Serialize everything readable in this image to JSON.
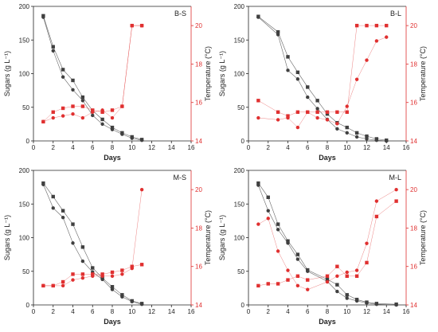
{
  "colors": {
    "sugar": "#404040",
    "temperature": "#e03030",
    "axis": "#222222"
  },
  "chart_data": [
    {
      "type": "line",
      "panel_label": "B-S",
      "xlabel": "Days",
      "ylabel_left": "Sugars (g L⁻¹)",
      "ylabel_right": "Temperature (°C)",
      "xlim": [
        0,
        16
      ],
      "xticks": [
        "0",
        "2",
        "4",
        "6",
        "8",
        "10",
        "12",
        "14",
        "16"
      ],
      "ylim_left": [
        0,
        200
      ],
      "yticks_left": [
        "0",
        "50",
        "100",
        "150",
        "200"
      ],
      "ylim_right": [
        14,
        21
      ],
      "yticks_right": [
        "14",
        "16",
        "18",
        "20"
      ],
      "grid": false,
      "series": [
        {
          "axis": "left",
          "marker": "square",
          "x": [
            1,
            2,
            3,
            4,
            5,
            6,
            7,
            8,
            9,
            10,
            11
          ],
          "y": [
            186,
            140,
            106,
            90,
            65,
            45,
            32,
            20,
            12,
            6,
            2
          ]
        },
        {
          "axis": "left",
          "marker": "circle",
          "x": [
            1,
            2,
            3,
            4,
            5,
            6,
            7,
            8,
            9,
            10,
            11
          ],
          "y": [
            184,
            134,
            95,
            76,
            60,
            38,
            25,
            17,
            10,
            4,
            1
          ]
        },
        {
          "axis": "right",
          "marker": "square",
          "x": [
            1,
            2,
            3,
            4,
            5,
            6,
            7,
            8,
            9,
            10,
            11
          ],
          "y": [
            15,
            15.5,
            15.7,
            15.8,
            15.8,
            15.6,
            15.5,
            15.6,
            15.8,
            20,
            20
          ]
        },
        {
          "axis": "right",
          "marker": "circle",
          "x": [
            1,
            2,
            3,
            4,
            5,
            6,
            7,
            8,
            9,
            10,
            11
          ],
          "y": [
            15,
            15.2,
            15.3,
            15.4,
            15.2,
            15.5,
            15.6,
            15.2,
            15.8,
            20,
            20
          ]
        }
      ]
    },
    {
      "type": "line",
      "panel_label": "B-L",
      "xlabel": "Days",
      "ylabel_left": "Sugars (g L⁻¹)",
      "ylabel_right": "Temperature (°C)",
      "xlim": [
        0,
        16
      ],
      "xticks": [
        "0",
        "2",
        "4",
        "6",
        "8",
        "10",
        "12",
        "14",
        "16"
      ],
      "ylim_left": [
        0,
        200
      ],
      "yticks_left": [
        "0",
        "50",
        "100",
        "150",
        "200"
      ],
      "ylim_right": [
        14,
        21
      ],
      "yticks_right": [
        "14",
        "16",
        "18",
        "20"
      ],
      "grid": false,
      "series": [
        {
          "axis": "left",
          "marker": "square",
          "x": [
            1,
            3,
            4,
            5,
            6,
            7,
            8,
            9,
            10,
            11,
            12,
            13,
            14
          ],
          "y": [
            185,
            162,
            125,
            102,
            80,
            60,
            40,
            27,
            20,
            12,
            7,
            3,
            1
          ]
        },
        {
          "axis": "left",
          "marker": "circle",
          "x": [
            1,
            3,
            4,
            5,
            6,
            7,
            8,
            9,
            10,
            11,
            12,
            13,
            14
          ],
          "y": [
            184,
            158,
            105,
            92,
            65,
            48,
            32,
            18,
            12,
            6,
            3,
            1,
            0
          ]
        },
        {
          "axis": "right",
          "marker": "square",
          "x": [
            1,
            3,
            4,
            5,
            6,
            7,
            8,
            9,
            10,
            11,
            12,
            13,
            14
          ],
          "y": [
            16.1,
            15.5,
            15.3,
            15.5,
            15.5,
            15.5,
            15.5,
            15.5,
            15.5,
            20,
            20,
            20,
            20
          ]
        },
        {
          "axis": "right",
          "marker": "circle",
          "x": [
            1,
            3,
            4,
            5,
            6,
            7,
            8,
            9,
            10,
            11,
            12,
            13,
            14
          ],
          "y": [
            15.2,
            15.1,
            15.2,
            14.7,
            15.5,
            15.2,
            15.1,
            14.9,
            15.8,
            17.2,
            18.2,
            19.2,
            19.4
          ]
        }
      ]
    },
    {
      "type": "line",
      "panel_label": "M-S",
      "xlabel": "Days",
      "ylabel_left": "Sugars (g L⁻¹)",
      "ylabel_right": "Temperature (°C)",
      "xlim": [
        0,
        16
      ],
      "xticks": [
        "0",
        "2",
        "4",
        "6",
        "8",
        "10",
        "12",
        "14",
        "16"
      ],
      "ylim_left": [
        0,
        200
      ],
      "yticks_left": [
        "0",
        "50",
        "100",
        "150",
        "200"
      ],
      "ylim_right": [
        14,
        21
      ],
      "yticks_right": [
        "14",
        "16",
        "18",
        "20"
      ],
      "grid": false,
      "series": [
        {
          "axis": "left",
          "marker": "square",
          "x": [
            1,
            2,
            3,
            4,
            5,
            6,
            7,
            8,
            9,
            10,
            11
          ],
          "y": [
            181,
            161,
            140,
            120,
            86,
            55,
            40,
            27,
            15,
            6,
            2
          ]
        },
        {
          "axis": "left",
          "marker": "circle",
          "x": [
            1,
            2,
            3,
            4,
            5,
            6,
            7,
            8,
            9,
            10,
            11
          ],
          "y": [
            179,
            144,
            130,
            92,
            65,
            49,
            38,
            23,
            12,
            5,
            1
          ]
        },
        {
          "axis": "right",
          "marker": "square",
          "x": [
            1,
            2,
            3,
            4,
            5,
            6,
            7,
            8,
            9,
            10,
            11
          ],
          "y": [
            15,
            15,
            15.2,
            15.6,
            15.6,
            15.6,
            15.6,
            15.7,
            15.8,
            16,
            16.1
          ]
        },
        {
          "axis": "right",
          "marker": "circle",
          "x": [
            1,
            2,
            3,
            4,
            5,
            6,
            7,
            8,
            9,
            10,
            11
          ],
          "y": [
            15,
            15,
            15,
            15.3,
            15.4,
            15.5,
            15.5,
            15.5,
            15.6,
            15.9,
            20
          ]
        }
      ]
    },
    {
      "type": "line",
      "panel_label": "M-L",
      "xlabel": "Days",
      "ylabel_left": "Sugars (g L⁻¹)",
      "ylabel_right": "Temperature (°C)",
      "xlim": [
        0,
        16
      ],
      "xticks": [
        "0",
        "2",
        "4",
        "6",
        "8",
        "10",
        "12",
        "14",
        "16"
      ],
      "ylim_left": [
        0,
        200
      ],
      "yticks_left": [
        "0",
        "50",
        "100",
        "150",
        "200"
      ],
      "ylim_right": [
        14,
        21
      ],
      "yticks_right": [
        "14",
        "16",
        "18",
        "20"
      ],
      "grid": false,
      "series": [
        {
          "axis": "left",
          "marker": "square",
          "x": [
            1,
            2,
            3,
            4,
            5,
            6,
            8,
            9,
            10,
            11,
            12,
            13,
            15
          ],
          "y": [
            181,
            160,
            120,
            95,
            75,
            52,
            38,
            30,
            15,
            8,
            4,
            2,
            1
          ]
        },
        {
          "axis": "left",
          "marker": "circle",
          "x": [
            1,
            2,
            3,
            4,
            5,
            6,
            8,
            9,
            10,
            11,
            12,
            13,
            15
          ],
          "y": [
            178,
            140,
            112,
            92,
            68,
            50,
            35,
            20,
            10,
            6,
            3,
            1,
            0
          ]
        },
        {
          "axis": "right",
          "marker": "square",
          "x": [
            1,
            2,
            3,
            4,
            5,
            6,
            8,
            9,
            10,
            11,
            12,
            13,
            15
          ],
          "y": [
            15,
            15.1,
            15.1,
            15.3,
            15.5,
            15.3,
            15.5,
            16,
            15.5,
            15.5,
            16.2,
            18.6,
            19.4
          ]
        },
        {
          "axis": "right",
          "marker": "circle",
          "x": [
            1,
            2,
            3,
            4,
            5,
            6,
            8,
            9,
            10,
            11,
            12,
            13,
            15
          ],
          "y": [
            18.2,
            18.5,
            16.8,
            15.8,
            15,
            14.8,
            15.2,
            15.5,
            15.7,
            15.8,
            17.2,
            19.4,
            20
          ]
        }
      ]
    }
  ]
}
